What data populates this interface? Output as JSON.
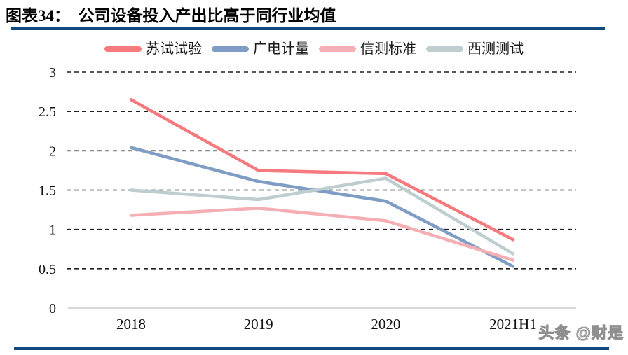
{
  "header": {
    "title": "图表34：  公司设备投入产出比高于同行业均值"
  },
  "accent_color": "#14497E",
  "watermark": {
    "text": "头条 @财是"
  },
  "chart_data": {
    "type": "line",
    "title": "公司设备投入产出比高于同行业均值",
    "categories": [
      "2018",
      "2019",
      "2020",
      "2021H1"
    ],
    "series": [
      {
        "name": "苏试试验",
        "color": "#F5797D",
        "values": [
          2.65,
          1.75,
          1.71,
          0.87
        ]
      },
      {
        "name": "广电计量",
        "color": "#7F9DC4",
        "values": [
          2.04,
          1.61,
          1.36,
          0.53
        ]
      },
      {
        "name": "信测标准",
        "color": "#F5AEB4",
        "values": [
          1.18,
          1.27,
          1.11,
          0.61
        ]
      },
      {
        "name": "西测测试",
        "color": "#BECDD0",
        "values": [
          1.5,
          1.38,
          1.65,
          0.69
        ]
      }
    ],
    "ylim": [
      0,
      3
    ],
    "yticks": [
      {
        "v": 0,
        "label": "0"
      },
      {
        "v": 0.5,
        "label": "0.5"
      },
      {
        "v": 1,
        "label": "1"
      },
      {
        "v": 1.5,
        "label": "1.5"
      },
      {
        "v": 2,
        "label": "2"
      },
      {
        "v": 2.5,
        "label": "2.5"
      },
      {
        "v": 3,
        "label": "3"
      }
    ],
    "grid": "horizontal-dashed",
    "legend_position": "top",
    "xlabel": "",
    "ylabel": ""
  }
}
